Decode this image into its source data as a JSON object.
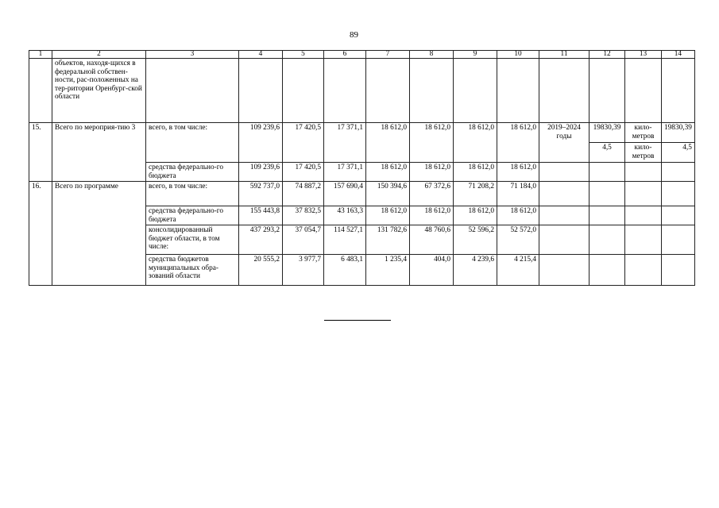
{
  "page_number": "89",
  "header": [
    "1",
    "2",
    "3",
    "4",
    "5",
    "6",
    "7",
    "8",
    "9",
    "10",
    "11",
    "12",
    "13",
    "14"
  ],
  "continuation": {
    "name": "объектов, находя-щихся  в федеральной собствен­ности, рас-положенных на тер-ритории Оренбург-ской области"
  },
  "row15": {
    "num": "15.",
    "name": "Всего по мероприя-тию 3",
    "total": {
      "label": "всего, в том числе:",
      "values": [
        "109 239,6",
        "17 420,5",
        "17 371,1",
        "18 612,0",
        "18 612,0",
        "18 612,0",
        "18 612,0"
      ],
      "period": "2019–2024 годы",
      "indicators": [
        {
          "value": "19830,39",
          "unit": "кило-метров",
          "target": "19830,39"
        },
        {
          "value": "4,5",
          "unit": "кило-метров",
          "target": "4,5"
        }
      ]
    },
    "federal": {
      "label": "средства федерально-го бюджета",
      "values": [
        "109 239,6",
        "17 420,5",
        "17 371,1",
        "18 612,0",
        "18 612,0",
        "18 612,0",
        "18 612,0"
      ]
    }
  },
  "row16": {
    "num": "16.",
    "name": "Всего по программе",
    "subrows": [
      {
        "label": "всего, в том числе:",
        "values": [
          "592 737,0",
          "74 887,2",
          "157 690,4",
          "150 394,6",
          "67 372,6",
          "71 208,2",
          "71 184,0"
        ]
      },
      {
        "label": "средства федерально-го бюджета",
        "values": [
          "155 443,8",
          "37 832,5",
          "43 163,3",
          "18 612,0",
          "18 612,0",
          "18 612,0",
          "18 612,0"
        ]
      },
      {
        "label": "консолидированный бюджет области, в том числе:",
        "values": [
          "437 293,2",
          "37 054,7",
          "114 527,1",
          "131 782,6",
          "48 760,6",
          "52 596,2",
          "52 572,0"
        ]
      },
      {
        "label": "средства бюджетов муниципальных обра-зований области",
        "values": [
          "20 555,2",
          "3 977,7",
          "6 483,1",
          "1 235,4",
          "404,0",
          "4 239,6",
          "4 215,4"
        ]
      }
    ]
  }
}
